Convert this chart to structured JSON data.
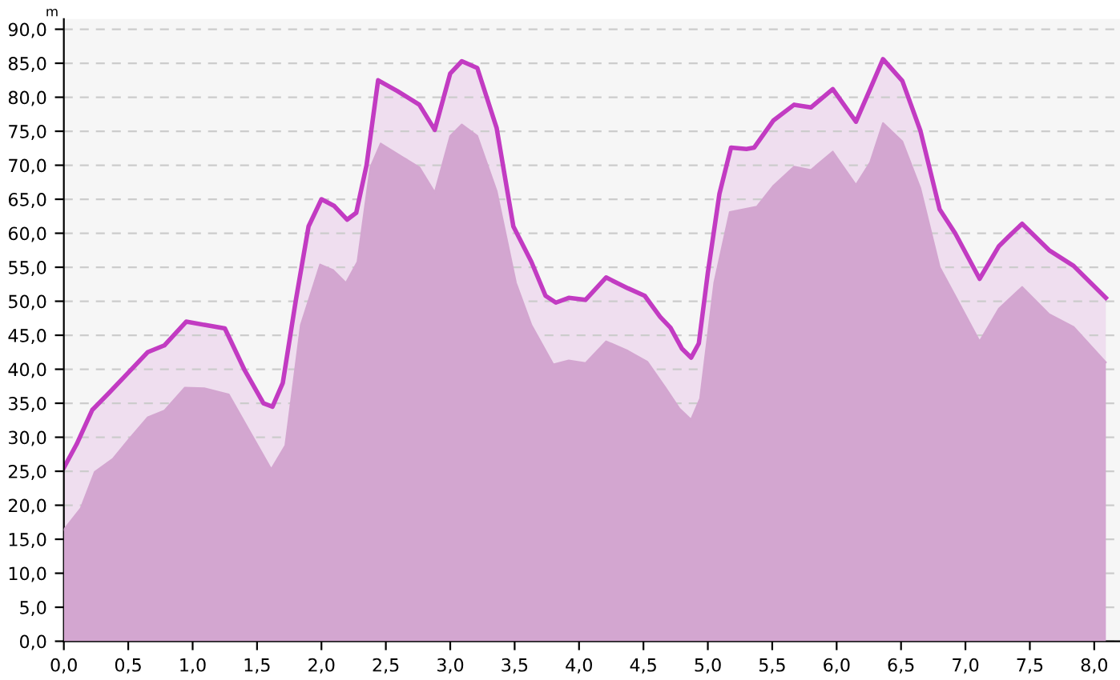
{
  "chart_data": {
    "type": "area",
    "ylabel": "m",
    "series": [
      {
        "type": "area",
        "color": "#c23bc2",
        "x": [
          0.0,
          0.1,
          0.22,
          0.35,
          0.5,
          0.65,
          0.78,
          0.95,
          1.1,
          1.25,
          1.4,
          1.55,
          1.62,
          1.7,
          1.8,
          1.9,
          2.0,
          2.1,
          2.2,
          2.27,
          2.35,
          2.44,
          2.59,
          2.76,
          2.88,
          3.0,
          3.09,
          3.21,
          3.36,
          3.49,
          3.63,
          3.74,
          3.82,
          3.92,
          4.05,
          4.21,
          4.38,
          4.51,
          4.63,
          4.71,
          4.8,
          4.87,
          4.93,
          5.0,
          5.09,
          5.18,
          5.3,
          5.36,
          5.51,
          5.67,
          5.8,
          5.97,
          6.15,
          6.26,
          6.36,
          6.51,
          6.65,
          6.8,
          6.92,
          7.11,
          7.26,
          7.34,
          7.44,
          7.65,
          7.84,
          8.09
        ],
        "values": [
          25.5,
          29,
          34,
          36.5,
          39.5,
          42.5,
          43.5,
          47,
          46.5,
          46,
          40,
          35,
          34.5,
          38,
          50,
          61,
          65,
          64,
          62,
          63,
          70,
          82.5,
          80.9,
          78.9,
          75.2,
          83.5,
          85.3,
          84.3,
          75.5,
          61,
          55.8,
          50.8,
          49.8,
          50.5,
          50.2,
          53.5,
          51.9,
          50.8,
          47.7,
          46.1,
          43,
          41.7,
          43.8,
          54.2,
          65.8,
          72.6,
          72.4,
          72.6,
          76.6,
          78.9,
          78.5,
          81.2,
          76.4,
          81.2,
          85.6,
          82.4,
          75.1,
          63.5,
          60,
          53.3,
          58.1,
          59.6,
          61.4,
          57.5,
          55.2,
          50.5
        ]
      },
      {
        "color": "#d3a6d0",
        "x": [
          0.0,
          0.13,
          0.24,
          0.38,
          0.51,
          0.65,
          0.78,
          0.94,
          1.09,
          1.28,
          1.46,
          1.61,
          1.72,
          1.84,
          1.99,
          2.09,
          2.19,
          2.28,
          2.38,
          2.46,
          2.63,
          2.76,
          2.88,
          3.0,
          3.09,
          3.21,
          3.36,
          3.51,
          3.63,
          3.8,
          3.92,
          4.05,
          4.21,
          4.38,
          4.53,
          4.67,
          4.78,
          4.87,
          4.94,
          5.05,
          5.17,
          5.38,
          5.51,
          5.67,
          5.8,
          5.97,
          6.15,
          6.26,
          6.36,
          6.51,
          6.65,
          6.8,
          6.92,
          7.11,
          7.26,
          7.44,
          7.65,
          7.84,
          8.09
        ],
        "values": [
          16.4,
          19.5,
          24.9,
          26.8,
          29.8,
          32.9,
          33.9,
          37.3,
          37.2,
          36.3,
          30.3,
          25.3,
          28.8,
          46.5,
          55.4,
          54.6,
          52.7,
          55.8,
          69.7,
          73.2,
          71.2,
          69.7,
          66,
          74.3,
          76,
          74.3,
          66.2,
          52.7,
          46.5,
          40.7,
          41.3,
          40.9,
          44.1,
          42.7,
          41.1,
          37.3,
          34.2,
          32.6,
          35.7,
          52.7,
          63.1,
          63.9,
          67,
          69.8,
          69.3,
          72,
          67.1,
          70.4,
          76.2,
          73.5,
          66.6,
          55,
          50.8,
          44.1,
          48.9,
          52.1,
          48.1,
          46.2,
          41
        ]
      }
    ],
    "xlim": [
      0,
      8.2
    ],
    "ylim": [
      0,
      91.5
    ],
    "xticks": [
      {
        "value": 0,
        "label": "0,0"
      },
      {
        "value": 0.5,
        "label": "0,5"
      },
      {
        "value": 1,
        "label": "1,0"
      },
      {
        "value": 1.5,
        "label": "1,5"
      },
      {
        "value": 2,
        "label": "2,0"
      },
      {
        "value": 2.5,
        "label": "2,5"
      },
      {
        "value": 3,
        "label": "3,0"
      },
      {
        "value": 3.5,
        "label": "3,5"
      },
      {
        "value": 4,
        "label": "4,0"
      },
      {
        "value": 4.5,
        "label": "4,5"
      },
      {
        "value": 5,
        "label": "5,0"
      },
      {
        "value": 5.5,
        "label": "5,5"
      },
      {
        "value": 6,
        "label": "6,0"
      },
      {
        "value": 6.5,
        "label": "6,5"
      },
      {
        "value": 7,
        "label": "7,0"
      },
      {
        "value": 7.5,
        "label": "7,5"
      },
      {
        "value": 8,
        "label": "8,0"
      }
    ],
    "yticks": [
      {
        "value": 0,
        "label": "0,0"
      },
      {
        "value": 5,
        "label": "5,0"
      },
      {
        "value": 10,
        "label": "10,0"
      },
      {
        "value": 15,
        "label": "15,0"
      },
      {
        "value": 20,
        "label": "20,0"
      },
      {
        "value": 25,
        "label": "25,0"
      },
      {
        "value": 30,
        "label": "30,0"
      },
      {
        "value": 35,
        "label": "35,0"
      },
      {
        "value": 40,
        "label": "40,0"
      },
      {
        "value": 45,
        "label": "45,0"
      },
      {
        "value": 50,
        "label": "50,0"
      },
      {
        "value": 55,
        "label": "55,0"
      },
      {
        "value": 60,
        "label": "60,0"
      },
      {
        "value": 65,
        "label": "65,0"
      },
      {
        "value": 70,
        "label": "70,0"
      },
      {
        "value": 75,
        "label": "75,0"
      },
      {
        "value": 80,
        "label": "80,0"
      },
      {
        "value": 85,
        "label": "85,0"
      },
      {
        "value": 90,
        "label": "90,0"
      }
    ],
    "grid": "y",
    "line_style": "solid",
    "marker": "none"
  }
}
